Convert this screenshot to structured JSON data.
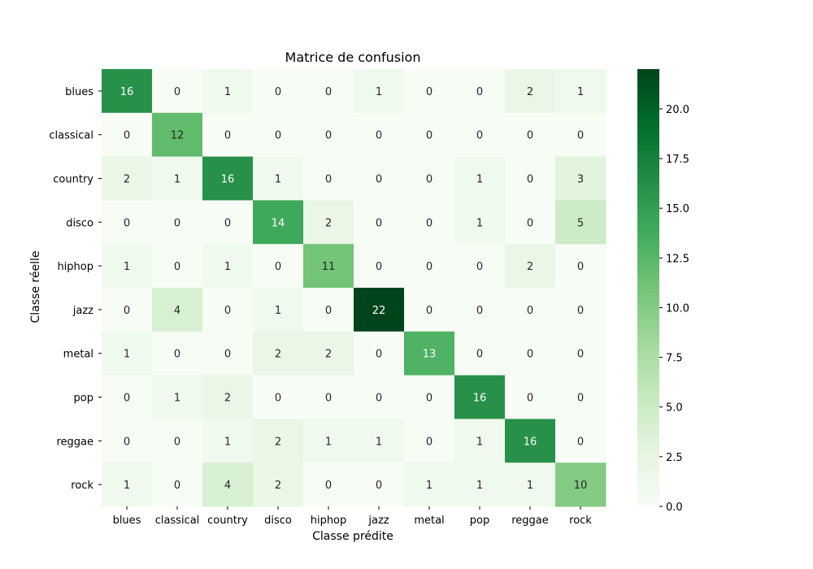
{
  "chart_data": {
    "type": "heatmap",
    "title": "Matrice de confusion",
    "xlabel": "Classe prédite",
    "ylabel": "Classe réelle",
    "x_categories": [
      "blues",
      "classical",
      "country",
      "disco",
      "hiphop",
      "jazz",
      "metal",
      "pop",
      "reggae",
      "rock"
    ],
    "y_categories": [
      "blues",
      "classical",
      "country",
      "disco",
      "hiphop",
      "jazz",
      "metal",
      "pop",
      "reggae",
      "rock"
    ],
    "values": [
      [
        16,
        0,
        1,
        0,
        0,
        1,
        0,
        0,
        2,
        1
      ],
      [
        0,
        12,
        0,
        0,
        0,
        0,
        0,
        0,
        0,
        0
      ],
      [
        2,
        1,
        16,
        1,
        0,
        0,
        0,
        1,
        0,
        3
      ],
      [
        0,
        0,
        0,
        14,
        2,
        0,
        0,
        1,
        0,
        5
      ],
      [
        1,
        0,
        1,
        0,
        11,
        0,
        0,
        0,
        2,
        0
      ],
      [
        0,
        4,
        0,
        1,
        0,
        22,
        0,
        0,
        0,
        0
      ],
      [
        1,
        0,
        0,
        2,
        2,
        0,
        13,
        0,
        0,
        0
      ],
      [
        0,
        1,
        2,
        0,
        0,
        0,
        0,
        16,
        0,
        0
      ],
      [
        0,
        0,
        1,
        2,
        1,
        1,
        0,
        1,
        16,
        0
      ],
      [
        1,
        0,
        4,
        2,
        0,
        0,
        1,
        1,
        1,
        10
      ]
    ],
    "colormap": "Greens",
    "color_min": 0,
    "color_max": 22,
    "colorbar_ticks": [
      "0.0",
      "2.5",
      "5.0",
      "7.5",
      "10.0",
      "12.5",
      "15.0",
      "17.5",
      "20.0"
    ],
    "colorbar_tick_values": [
      0,
      2.5,
      5,
      7.5,
      10,
      12.5,
      15,
      17.5,
      20
    ],
    "grid": false
  }
}
